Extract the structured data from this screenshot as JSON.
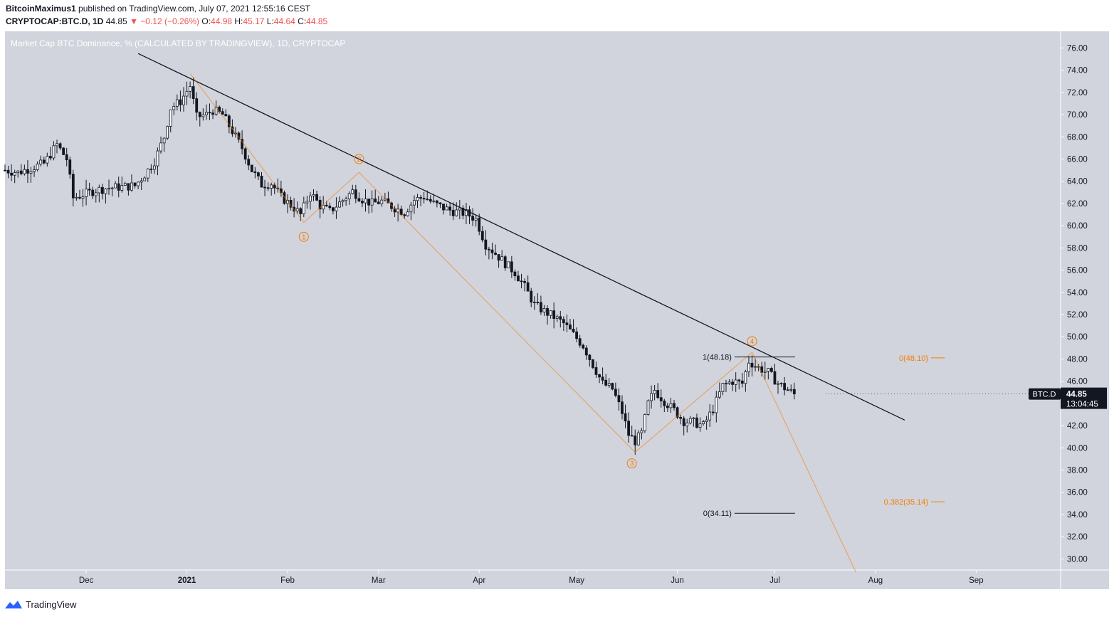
{
  "header": {
    "author": "BitcoinMaximus1",
    "published": "published on TradingView.com, July 07, 2021 12:55:16 CEST",
    "symbol": "CRYPTOCAP:BTC.D, 1D",
    "last": "44.85",
    "change": "▼ −0.12 (−0.26%)",
    "o_label": "O:",
    "o": "44.98",
    "h_label": "H:",
    "h": "45.17",
    "l_label": "L:",
    "l": "44.64",
    "c_label": "C:",
    "c": "44.85"
  },
  "footer": {
    "brand": "TradingView"
  },
  "price_tag": {
    "symbol": "BTC.D",
    "price": "44.85",
    "countdown": "13:04:45"
  },
  "colors": {
    "bg": "#d1d4dc",
    "orange": "#f57c00",
    "candle": "#131722",
    "trend": "#131722",
    "tag": "#131722"
  },
  "chart_data": {
    "type": "candlestick",
    "title": "Market Cap BTC Dominance, % (CALCULATED BY TRADINGVIEW), 1D, CRYPTOCAP",
    "y_unit": "%",
    "ylim": [
      29.0,
      77.5
    ],
    "y_ticks": [
      "76.00",
      "74.00",
      "72.00",
      "70.00",
      "68.00",
      "66.00",
      "64.00",
      "62.00",
      "60.00",
      "58.00",
      "56.00",
      "54.00",
      "52.00",
      "50.00",
      "48.00",
      "46.00",
      "44.00",
      "42.00",
      "40.00",
      "38.00",
      "36.00",
      "34.00",
      "32.00",
      "30.00"
    ],
    "x_range": [
      "2020-11-06",
      "2021-09-27"
    ],
    "x_ticks": [
      {
        "label": "Dec",
        "date": "2020-12-01"
      },
      {
        "label": "2021",
        "date": "2021-01-01"
      },
      {
        "label": "Feb",
        "date": "2021-02-01"
      },
      {
        "label": "Mar",
        "date": "2021-03-01"
      },
      {
        "label": "Apr",
        "date": "2021-04-01"
      },
      {
        "label": "May",
        "date": "2021-05-01"
      },
      {
        "label": "Jun",
        "date": "2021-06-01"
      },
      {
        "label": "Jul",
        "date": "2021-07-01"
      },
      {
        "label": "Aug",
        "date": "2021-08-01"
      },
      {
        "label": "Sep",
        "date": "2021-09-01"
      }
    ],
    "close_path": [
      [
        "2020-11-06",
        65.0
      ],
      [
        "2020-11-10",
        64.8
      ],
      [
        "2020-11-14",
        65.2
      ],
      [
        "2020-11-18",
        65.6
      ],
      [
        "2020-11-22",
        67.3
      ],
      [
        "2020-11-25",
        66.0
      ],
      [
        "2020-11-27",
        62.5
      ],
      [
        "2020-11-30",
        62.8
      ],
      [
        "2020-12-04",
        63.2
      ],
      [
        "2020-12-08",
        63.4
      ],
      [
        "2020-12-12",
        63.5
      ],
      [
        "2020-12-16",
        63.6
      ],
      [
        "2020-12-19",
        64.6
      ],
      [
        "2020-12-22",
        65.8
      ],
      [
        "2020-12-25",
        68.0
      ],
      [
        "2020-12-27",
        70.6
      ],
      [
        "2020-12-30",
        71.2
      ],
      [
        "2021-01-02",
        72.6
      ],
      [
        "2021-01-04",
        69.8
      ],
      [
        "2021-01-07",
        70.0
      ],
      [
        "2021-01-09",
        70.4
      ],
      [
        "2021-01-12",
        70.0
      ],
      [
        "2021-01-15",
        68.5
      ],
      [
        "2021-01-18",
        67.0
      ],
      [
        "2021-01-21",
        65.0
      ],
      [
        "2021-01-24",
        63.7
      ],
      [
        "2021-01-27",
        63.8
      ],
      [
        "2021-01-30",
        62.6
      ],
      [
        "2021-02-03",
        61.6
      ],
      [
        "2021-02-05",
        61.0
      ],
      [
        "2021-02-08",
        63.0
      ],
      [
        "2021-02-11",
        61.8
      ],
      [
        "2021-02-14",
        61.3
      ],
      [
        "2021-02-18",
        62.3
      ],
      [
        "2021-02-21",
        63.1
      ],
      [
        "2021-02-24",
        62.4
      ],
      [
        "2021-02-27",
        62.0
      ],
      [
        "2021-03-02",
        62.2
      ],
      [
        "2021-03-06",
        61.6
      ],
      [
        "2021-03-09",
        61.2
      ],
      [
        "2021-03-12",
        62.3
      ],
      [
        "2021-03-15",
        62.6
      ],
      [
        "2021-03-18",
        62.0
      ],
      [
        "2021-03-21",
        61.6
      ],
      [
        "2021-03-24",
        61.3
      ],
      [
        "2021-03-28",
        61.1
      ],
      [
        "2021-03-31",
        60.6
      ],
      [
        "2021-04-03",
        58.3
      ],
      [
        "2021-04-06",
        57.5
      ],
      [
        "2021-04-09",
        56.6
      ],
      [
        "2021-04-12",
        55.8
      ],
      [
        "2021-04-15",
        54.5
      ],
      [
        "2021-04-18",
        52.9
      ],
      [
        "2021-04-21",
        52.3
      ],
      [
        "2021-04-24",
        51.8
      ],
      [
        "2021-04-27",
        51.2
      ],
      [
        "2021-04-30",
        50.2
      ],
      [
        "2021-05-03",
        49.2
      ],
      [
        "2021-05-06",
        47.5
      ],
      [
        "2021-05-09",
        45.8
      ],
      [
        "2021-05-12",
        45.3
      ],
      [
        "2021-05-15",
        43.2
      ],
      [
        "2021-05-17",
        41.2
      ],
      [
        "2021-05-19",
        40.6
      ],
      [
        "2021-05-21",
        41.3
      ],
      [
        "2021-05-23",
        44.0
      ],
      [
        "2021-05-25",
        45.2
      ],
      [
        "2021-05-28",
        44.2
      ],
      [
        "2021-05-31",
        43.4
      ],
      [
        "2021-06-03",
        42.4
      ],
      [
        "2021-06-06",
        42.3
      ],
      [
        "2021-06-09",
        42.0
      ],
      [
        "2021-06-12",
        43.5
      ],
      [
        "2021-06-15",
        45.6
      ],
      [
        "2021-06-18",
        46.0
      ],
      [
        "2021-06-21",
        45.8
      ],
      [
        "2021-06-23",
        47.8
      ],
      [
        "2021-06-26",
        47.2
      ],
      [
        "2021-06-29",
        46.8
      ],
      [
        "2021-07-02",
        45.8
      ],
      [
        "2021-07-04",
        45.4
      ],
      [
        "2021-07-07",
        44.85
      ]
    ],
    "annotations": {
      "trendline": [
        [
          "2020-12-17",
          75.5
        ],
        [
          "2021-08-10",
          42.5
        ]
      ],
      "wave_path": [
        [
          "2021-01-02",
          73.7
        ],
        [
          "2021-02-06",
          60.3
        ],
        [
          "2021-02-23",
          64.8
        ],
        [
          "2021-05-19",
          39.6
        ],
        [
          "2021-06-24",
          48.6
        ],
        [
          "2021-07-26",
          28.8
        ]
      ],
      "wave_labels": [
        {
          "label": "1",
          "date": "2021-02-06",
          "y": 59.0
        },
        {
          "label": "2",
          "date": "2021-02-23",
          "y": 66.0
        },
        {
          "label": "3",
          "date": "2021-05-18",
          "y": 38.6
        },
        {
          "label": "4",
          "date": "2021-06-24",
          "y": 49.6
        }
      ],
      "fib_black": [
        {
          "label": "1(48.18)",
          "value": 48.18
        },
        {
          "label": "0(34.11)",
          "value": 34.11
        }
      ],
      "fib_orange": [
        {
          "label": "0(48.10)",
          "value": 48.1
        },
        {
          "label": "0.382(35.14)",
          "value": 35.14
        }
      ]
    }
  }
}
